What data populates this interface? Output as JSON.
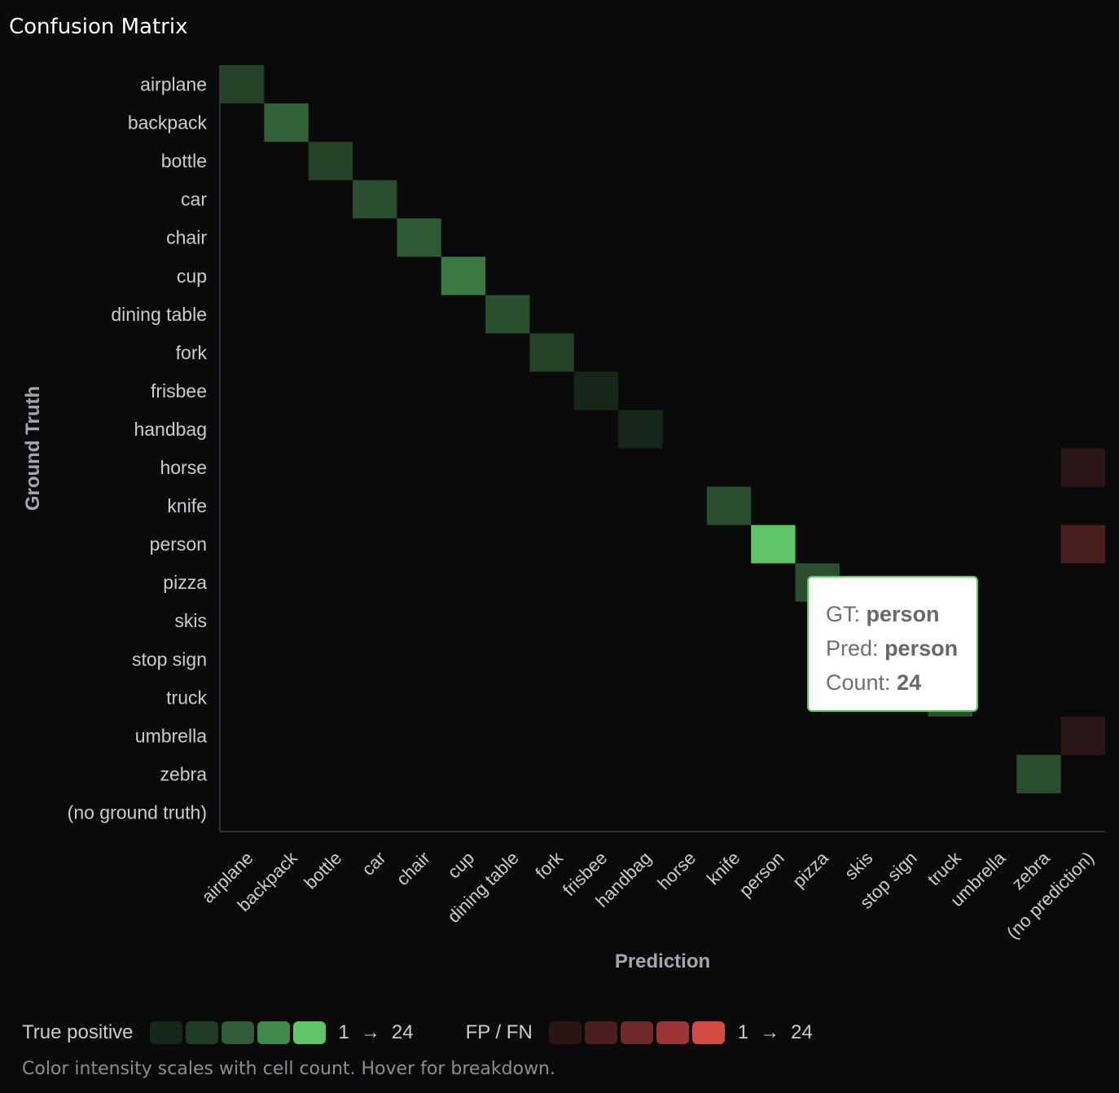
{
  "title": "Confusion Matrix",
  "chart_data": {
    "type": "heatmap",
    "rows": [
      "airplane",
      "backpack",
      "bottle",
      "car",
      "chair",
      "cup",
      "dining table",
      "fork",
      "frisbee",
      "handbag",
      "horse",
      "knife",
      "person",
      "pizza",
      "skis",
      "stop sign",
      "truck",
      "umbrella",
      "zebra",
      "(no ground truth)"
    ],
    "cols": [
      "airplane",
      "backpack",
      "bottle",
      "car",
      "chair",
      "cup",
      "dining table",
      "fork",
      "frisbee",
      "handbag",
      "horse",
      "knife",
      "person",
      "pizza",
      "skis",
      "stop sign",
      "truck",
      "umbrella",
      "zebra",
      "(no prediction)"
    ],
    "xlabel": "Prediction",
    "ylabel": "Ground Truth",
    "count_range": [
      1,
      24
    ],
    "cells": [
      {
        "gt": "airplane",
        "pred": "airplane",
        "count": 2,
        "kind": "tp"
      },
      {
        "gt": "backpack",
        "pred": "backpack",
        "count": 5,
        "kind": "tp"
      },
      {
        "gt": "bottle",
        "pred": "bottle",
        "count": 2,
        "kind": "tp"
      },
      {
        "gt": "car",
        "pred": "car",
        "count": 3,
        "kind": "tp"
      },
      {
        "gt": "chair",
        "pred": "chair",
        "count": 4,
        "kind": "tp"
      },
      {
        "gt": "cup",
        "pred": "cup",
        "count": 8,
        "kind": "tp"
      },
      {
        "gt": "dining table",
        "pred": "dining table",
        "count": 3,
        "kind": "tp"
      },
      {
        "gt": "fork",
        "pred": "fork",
        "count": 2,
        "kind": "tp"
      },
      {
        "gt": "frisbee",
        "pred": "frisbee",
        "count": 1,
        "kind": "tp"
      },
      {
        "gt": "handbag",
        "pred": "handbag",
        "count": 1,
        "kind": "tp"
      },
      {
        "gt": "horse",
        "pred": "(no prediction)",
        "count": 1,
        "kind": "err"
      },
      {
        "gt": "knife",
        "pred": "knife",
        "count": 3,
        "kind": "tp"
      },
      {
        "gt": "person",
        "pred": "person",
        "count": 24,
        "kind": "tp"
      },
      {
        "gt": "person",
        "pred": "(no prediction)",
        "count": 2,
        "kind": "err"
      },
      {
        "gt": "pizza",
        "pred": "pizza",
        "count": 3,
        "kind": "tp"
      },
      {
        "gt": "truck",
        "pred": "truck",
        "count": 3,
        "kind": "tp"
      },
      {
        "gt": "umbrella",
        "pred": "(no prediction)",
        "count": 1,
        "kind": "err"
      },
      {
        "gt": "zebra",
        "pred": "zebra",
        "count": 3,
        "kind": "tp"
      }
    ]
  },
  "tooltip": {
    "gt_label": "GT:",
    "gt_value": "person",
    "pred_label": "Pred:",
    "pred_value": "person",
    "count_label": "Count:",
    "count_value": "24"
  },
  "legend": {
    "tp_label": "True positive",
    "tp_colors": [
      "#15261a",
      "#1f3d26",
      "#2f5c36",
      "#428a4b",
      "#5ec466"
    ],
    "tp_min": "1",
    "tp_max": "24",
    "err_label": "FP / FN",
    "err_colors": [
      "#2a1515",
      "#4a1e1e",
      "#6f2a2a",
      "#9c3636",
      "#d44a45"
    ],
    "err_min": "1",
    "err_max": "24",
    "arrow": "→"
  },
  "note": "Color intensity scales with cell count. Hover for breakdown."
}
